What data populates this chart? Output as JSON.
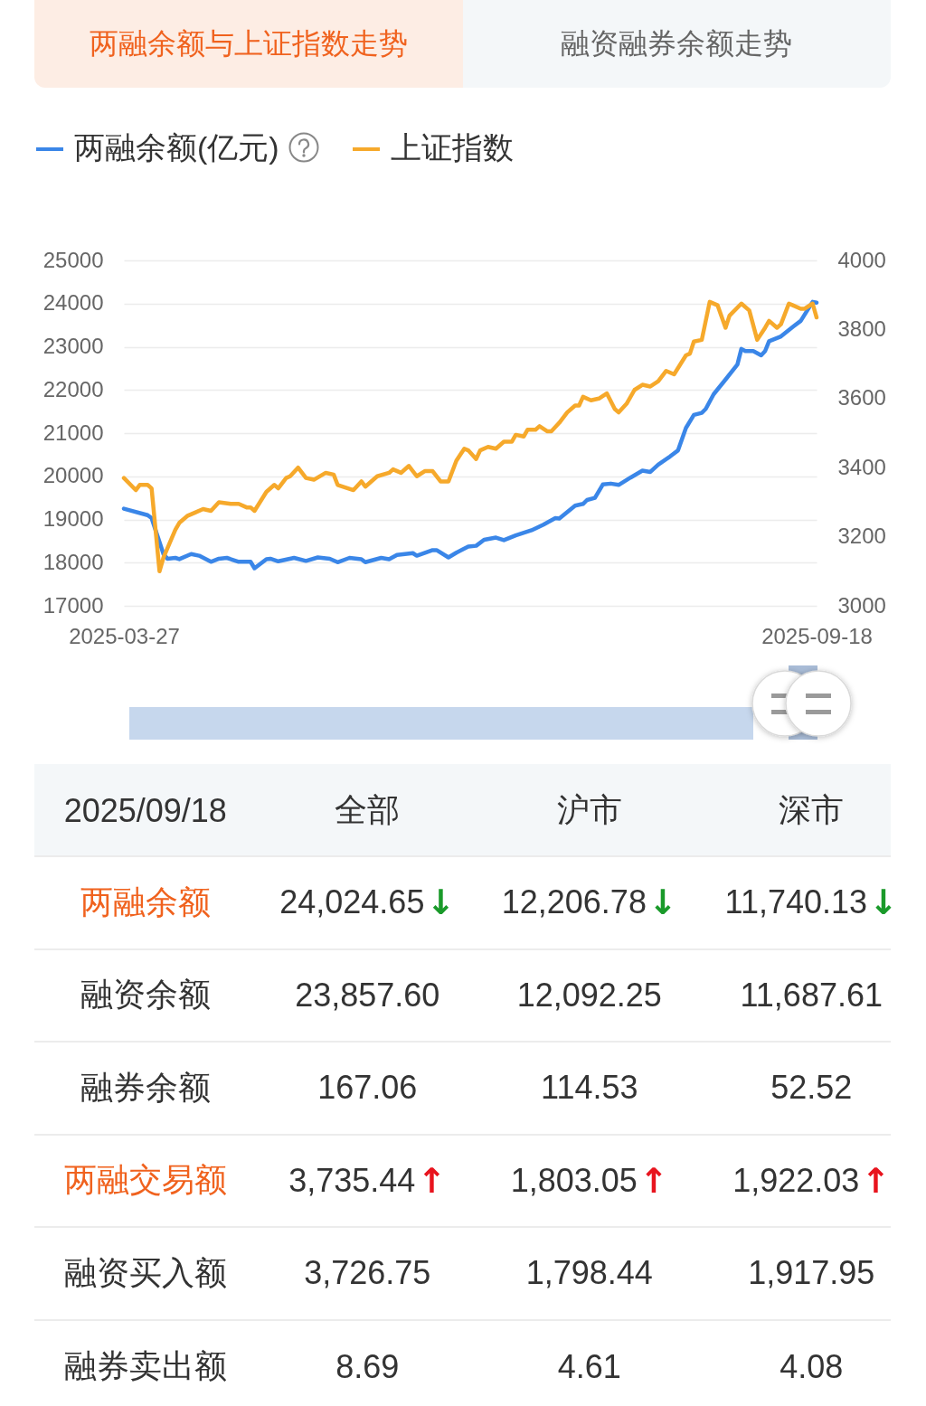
{
  "chart_data": [
    {
      "type": "line",
      "title": "两融余额与上证指数走势",
      "annotations": [
        "融资融券余额走势"
      ],
      "series": [
        {
          "name": "两融余额(亿元)",
          "color": "#3a86e8",
          "x": [
            "2025-03-27",
            "2025-04-02",
            "2025-04-03",
            "2025-04-06",
            "2025-04-07",
            "2025-04-09",
            "2025-04-10",
            "2025-04-13",
            "2025-04-15",
            "2025-04-18",
            "2025-04-20",
            "2025-04-22",
            "2025-04-25",
            "2025-04-28",
            "2025-04-29",
            "2025-05-02",
            "2025-05-03",
            "2025-05-05",
            "2025-05-09",
            "2025-05-12",
            "2025-05-15",
            "2025-05-18",
            "2025-05-20",
            "2025-05-23",
            "2025-05-26",
            "2025-05-27",
            "2025-05-31",
            "2025-06-02",
            "2025-06-04",
            "2025-06-08",
            "2025-06-09",
            "2025-06-13",
            "2025-06-14",
            "2025-06-17",
            "2025-06-19",
            "2025-06-22",
            "2025-06-24",
            "2025-06-26",
            "2025-06-29",
            "2025-07-01",
            "2025-07-04",
            "2025-07-08",
            "2025-07-11",
            "2025-07-14",
            "2025-07-15",
            "2025-07-19",
            "2025-07-21",
            "2025-07-22",
            "2025-07-24",
            "2025-07-26",
            "2025-07-28",
            "2025-07-30",
            "2025-08-02",
            "2025-08-05",
            "2025-08-07",
            "2025-08-09",
            "2025-08-12",
            "2025-08-14",
            "2025-08-16",
            "2025-08-18",
            "2025-08-20",
            "2025-08-21",
            "2025-08-23",
            "2025-08-26",
            "2025-08-29",
            "2025-08-30",
            "2025-08-31",
            "2025-09-02",
            "2025-09-04",
            "2025-09-05",
            "2025-09-06",
            "2025-09-09",
            "2025-09-12",
            "2025-09-14",
            "2025-09-17",
            "2025-09-18"
          ],
          "values": [
            19250,
            19100,
            19030,
            18200,
            18090,
            18110,
            18080,
            18200,
            18160,
            18020,
            18090,
            18110,
            18020,
            18020,
            17870,
            18080,
            18090,
            18030,
            18110,
            18040,
            18120,
            18090,
            18010,
            18110,
            18080,
            18010,
            18110,
            18080,
            18180,
            18220,
            18160,
            18290,
            18290,
            18120,
            18230,
            18370,
            18390,
            18530,
            18580,
            18520,
            18630,
            18750,
            18880,
            19030,
            19020,
            19320,
            19360,
            19450,
            19500,
            19810,
            19830,
            19800,
            19970,
            20130,
            20100,
            20270,
            20460,
            20600,
            21120,
            21420,
            21470,
            21560,
            21900,
            22240,
            22590,
            22950,
            22900,
            22900,
            22800,
            22900,
            23130,
            23240,
            23460,
            23600,
            24040,
            24020
          ]
        },
        {
          "name": "上证指数",
          "color": "#f6a92b",
          "axis": "y2",
          "x": [
            "2025-03-27",
            "2025-03-30",
            "2025-03-31",
            "2025-04-02",
            "2025-04-03",
            "2025-04-05",
            "2025-04-06",
            "2025-04-09",
            "2025-04-10",
            "2025-04-12",
            "2025-04-14",
            "2025-04-16",
            "2025-04-18",
            "2025-04-20",
            "2025-04-23",
            "2025-04-25",
            "2025-04-27",
            "2025-04-28",
            "2025-04-29",
            "2025-05-02",
            "2025-05-04",
            "2025-05-05",
            "2025-05-07",
            "2025-05-08",
            "2025-05-10",
            "2025-05-12",
            "2025-05-14",
            "2025-05-17",
            "2025-05-19",
            "2025-05-20",
            "2025-05-24",
            "2025-05-26",
            "2025-05-27",
            "2025-05-30",
            "2025-06-02",
            "2025-06-03",
            "2025-06-05",
            "2025-06-07",
            "2025-06-09",
            "2025-06-11",
            "2025-06-13",
            "2025-06-15",
            "2025-06-17",
            "2025-06-19",
            "2025-06-21",
            "2025-06-22",
            "2025-06-24",
            "2025-06-25",
            "2025-06-27",
            "2025-06-29",
            "2025-07-01",
            "2025-07-03",
            "2025-07-04",
            "2025-07-06",
            "2025-07-07",
            "2025-07-09",
            "2025-07-10",
            "2025-07-12",
            "2025-07-13",
            "2025-07-15",
            "2025-07-17",
            "2025-07-19",
            "2025-07-20",
            "2025-07-21",
            "2025-07-23",
            "2025-07-25",
            "2025-07-27",
            "2025-07-29",
            "2025-07-30",
            "2025-08-01",
            "2025-08-03",
            "2025-08-05",
            "2025-08-07",
            "2025-08-09",
            "2025-08-11",
            "2025-08-13",
            "2025-08-16",
            "2025-08-17",
            "2025-08-18",
            "2025-08-20",
            "2025-08-22",
            "2025-08-24",
            "2025-08-26",
            "2025-08-27",
            "2025-08-30",
            "2025-09-01",
            "2025-09-03",
            "2025-09-05",
            "2025-09-06",
            "2025-09-08",
            "2025-09-09",
            "2025-09-11",
            "2025-09-12",
            "2025-09-14",
            "2025-09-15",
            "2025-09-17",
            "2025-09-18"
          ],
          "values": [
            3370,
            3335,
            3350,
            3350,
            3340,
            3100,
            3140,
            3220,
            3240,
            3260,
            3270,
            3280,
            3275,
            3300,
            3295,
            3295,
            3285,
            3285,
            3275,
            3330,
            3350,
            3340,
            3370,
            3375,
            3400,
            3370,
            3365,
            3385,
            3380,
            3350,
            3335,
            3360,
            3345,
            3375,
            3385,
            3395,
            3385,
            3405,
            3375,
            3390,
            3390,
            3360,
            3360,
            3420,
            3455,
            3450,
            3425,
            3450,
            3460,
            3455,
            3475,
            3475,
            3495,
            3490,
            3510,
            3510,
            3520,
            3505,
            3505,
            3530,
            3560,
            3580,
            3580,
            3605,
            3595,
            3600,
            3615,
            3570,
            3560,
            3585,
            3625,
            3640,
            3635,
            3650,
            3680,
            3670,
            3725,
            3730,
            3765,
            3770,
            3880,
            3870,
            3805,
            3840,
            3875,
            3855,
            3770,
            3805,
            3825,
            3805,
            3815,
            3875,
            3870,
            3860,
            3860,
            3875,
            3835
          ]
        }
      ],
      "xlim": [
        "2025-03-27",
        "2025-09-18"
      ],
      "xticks": [
        "2025-03-27",
        "2025-09-18"
      ],
      "ylim": [
        17000,
        25000
      ],
      "yticks": [
        17000,
        18000,
        19000,
        20000,
        21000,
        22000,
        23000,
        24000,
        25000
      ],
      "y2lim": [
        3000,
        4000
      ],
      "y2ticks": [
        3000,
        3200,
        3400,
        3600,
        3800,
        4000
      ],
      "grid": "y",
      "legend": "top left"
    },
    {
      "type": "other",
      "title": "2025/09/18",
      "categories": [
        "全部",
        "沪市",
        "深市"
      ],
      "y_categories": [
        "两融余额",
        "融资余额",
        "融券余额",
        "两融交易额",
        "融资买入额",
        "融券卖出额"
      ],
      "cell_labels": [
        [
          "24,024.65↓",
          "12,206.78↓",
          "11,740.13↓"
        ],
        [
          "23,857.60",
          "12,092.25",
          "11,687.61"
        ],
        [
          "167.06",
          "114.53",
          "52.52"
        ],
        [
          "3,735.44↑",
          "1,803.05↑",
          "1,922.03↑"
        ],
        [
          "3,726.75",
          "1,798.44",
          "1,917.95"
        ],
        [
          "8.69",
          "4.61",
          "4.08"
        ]
      ]
    }
  ]
}
